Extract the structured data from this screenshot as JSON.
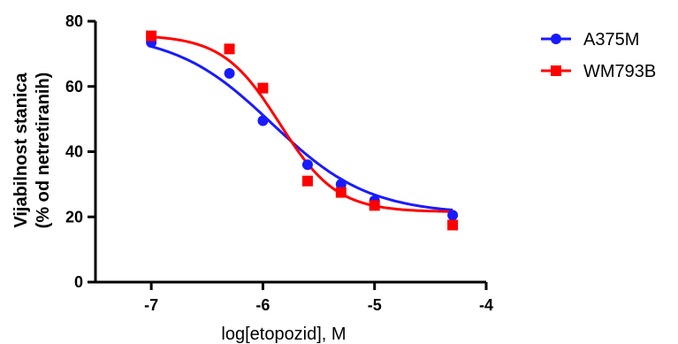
{
  "chart_data": {
    "type": "scatter",
    "title": "",
    "xlabel": "log[etopozid], M",
    "ylabel_line1": "Vijabilnost stanica",
    "ylabel_line2": "(% od netretiranih)",
    "xlim": [
      -7.5,
      -4
    ],
    "ylim": [
      0,
      80
    ],
    "x_ticks": [
      -7,
      -6,
      -5,
      -4
    ],
    "x_tick_labels": [
      "-7",
      "-6",
      "-5",
      "-4"
    ],
    "y_ticks": [
      0,
      20,
      40,
      60,
      80
    ],
    "y_tick_labels": [
      "0",
      "20",
      "40",
      "60",
      "80"
    ],
    "grid": false,
    "legend_position": "top-right",
    "series": [
      {
        "name": "A375M",
        "color": "#1a1aff",
        "marker": "circle",
        "x": [
          -7,
          -6.3,
          -6,
          -5.6,
          -5.3,
          -5,
          -4.3
        ],
        "y": [
          73.5,
          64,
          49.5,
          36,
          30,
          25,
          20.5
        ],
        "fit": {
          "bottom": 20.8,
          "top": 76.5,
          "log_ec50": -5.92,
          "hill_slope": -1.0
        }
      },
      {
        "name": "WM793B",
        "color": "#ff0000",
        "marker": "square",
        "x": [
          -7,
          -6.3,
          -6,
          -5.6,
          -5.3,
          -5,
          -4.3
        ],
        "y": [
          75.5,
          71.5,
          59.5,
          31,
          27.5,
          23.5,
          17.5
        ],
        "fit": {
          "bottom": 21.5,
          "top": 75.8,
          "log_ec50": -5.85,
          "hill_slope": -1.7
        }
      }
    ]
  }
}
